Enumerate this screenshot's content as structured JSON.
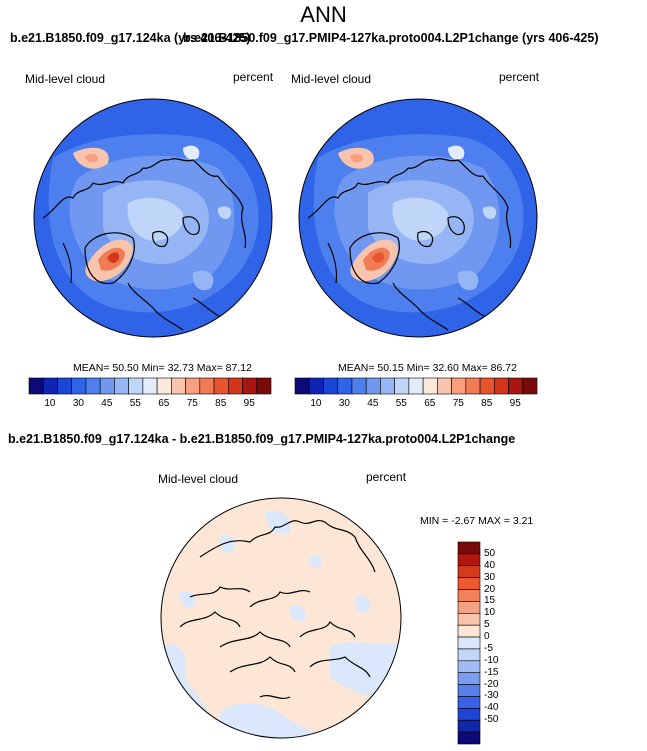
{
  "title": "ANN",
  "header_overlap": {
    "left_case": "b.e21.B1850.f09_g17.124ka (yrs 406-425)",
    "right_case": "b.e21.B1850.f09_g17.PMIP4-127ka.proto004.L2P1change (yrs 406-425)"
  },
  "panels": [
    {
      "variable": "Mid-level cloud",
      "units": "percent",
      "mean_label": "MEAN=",
      "mean": "50.50",
      "min_label": "Min=",
      "min": "32.73",
      "max_label": "Max=",
      "max": "87.12"
    },
    {
      "variable": "Mid-level cloud",
      "units": "percent",
      "mean_label": "MEAN=",
      "mean": "50.15",
      "min_label": "Min=",
      "min": "32.60",
      "max_label": "Max=",
      "max": "86.72"
    }
  ],
  "abs_colorbar": {
    "colors": [
      "#0d0a78",
      "#0e24b4",
      "#1946d6",
      "#2f63e8",
      "#4d80ee",
      "#7098f0",
      "#95b5f4",
      "#c0d6f8",
      "#e2ecfb",
      "#fde8dc",
      "#f9c4ad",
      "#f6a080",
      "#f17b54",
      "#e9542f",
      "#d4361c",
      "#a8160f",
      "#7a0a0a"
    ],
    "labels": [
      "10",
      "30",
      "45",
      "55",
      "65",
      "75",
      "85",
      "95"
    ]
  },
  "diff": {
    "title": "b.e21.B1850.f09_g17.124ka - b.e21.B1850.f09_g17.PMIP4-127ka.proto004.L2P1change",
    "variable": "Mid-level cloud",
    "units": "percent",
    "min_label": "MIN =",
    "min": "-2.67",
    "max_label": "MAX =",
    "max": "3.21",
    "colorbar_colors": [
      "#7a0a0a",
      "#b3160f",
      "#d63a1d",
      "#ee5a2f",
      "#f2805a",
      "#f4a283",
      "#f8c2ab",
      "#fde6d6",
      "#dbe7fb",
      "#c1d6f8",
      "#9fbdf4",
      "#7b9df0",
      "#5a80ec",
      "#3b62e6",
      "#1f45d4",
      "#1028a8",
      "#0d0a78"
    ],
    "colorbar_labels": [
      "50",
      "40",
      "30",
      "20",
      "15",
      "10",
      "5",
      "0",
      "-5",
      "-10",
      "-15",
      "-20",
      "-30",
      "-40",
      "-50"
    ]
  }
}
